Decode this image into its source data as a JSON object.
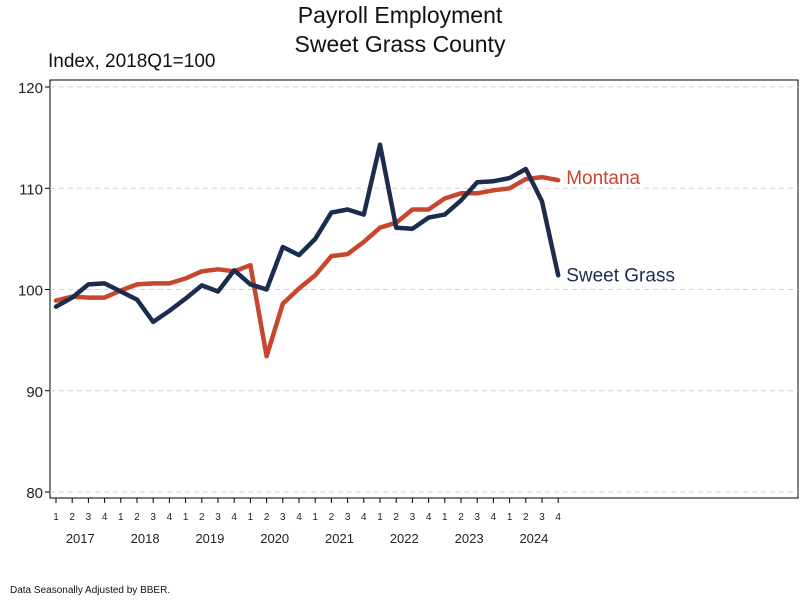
{
  "chart_data": {
    "type": "line",
    "title": "Payroll Employment",
    "subtitle": "Sweet Grass County",
    "ylabel": "Index, 2018Q1=100",
    "ylim": [
      80,
      120
    ],
    "yticks": [
      80,
      90,
      100,
      110,
      120
    ],
    "grid": "horizontal dashed",
    "quarters": [
      "1",
      "2",
      "3",
      "4",
      "1",
      "2",
      "3",
      "4",
      "1",
      "2",
      "3",
      "4",
      "1",
      "2",
      "3",
      "4",
      "1",
      "2",
      "3",
      "4",
      "1",
      "2",
      "3",
      "4",
      "1",
      "2",
      "3",
      "4",
      "1",
      "2",
      "3",
      "4"
    ],
    "years": [
      "2017",
      "2018",
      "2019",
      "2020",
      "2021",
      "2022",
      "2023",
      "2024"
    ],
    "series": [
      {
        "name": "Montana",
        "color": "#C8462E",
        "values": [
          98.9,
          99.3,
          99.2,
          99.2,
          99.9,
          100.5,
          100.6,
          100.6,
          101.1,
          101.8,
          102.0,
          101.8,
          102.4,
          93.4,
          98.6,
          100.1,
          101.4,
          103.3,
          103.5,
          104.7,
          106.1,
          106.6,
          107.9,
          107.9,
          109.0,
          109.5,
          109.5,
          109.8,
          110.0,
          110.9,
          111.1,
          110.8
        ]
      },
      {
        "name": "Sweet Grass",
        "color": "#1B2D4F",
        "values": [
          98.3,
          99.2,
          100.5,
          100.6,
          99.8,
          99.0,
          96.8,
          97.9,
          99.1,
          100.4,
          99.8,
          101.9,
          100.5,
          100.0,
          104.2,
          103.4,
          105.0,
          107.6,
          107.9,
          107.4,
          114.3,
          106.1,
          106.0,
          107.1,
          107.4,
          108.8,
          110.6,
          110.7,
          111.0,
          111.9,
          108.7,
          101.4
        ]
      }
    ]
  },
  "footnote": "Data Seasonally Adjusted by BBER."
}
